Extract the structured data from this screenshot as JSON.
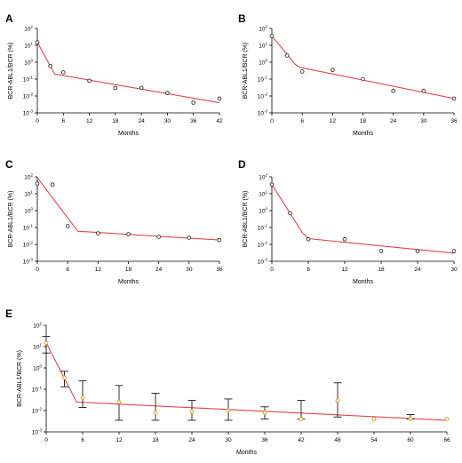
{
  "chart_data": [
    {
      "panel": "A",
      "type": "scatter",
      "ylabel": "BCR-ABL1/BCR (%)",
      "xlabel": "Months",
      "y_scale": "log10",
      "ylim": [
        0.001,
        100
      ],
      "xlim": [
        0,
        42
      ],
      "x_ticks": [
        "0",
        "6",
        "12",
        "18",
        "24",
        "30",
        "36",
        "42"
      ],
      "y_ticks": [
        {
          "b": "10",
          "e": "2"
        },
        {
          "b": "10",
          "e": "1"
        },
        {
          "b": "10",
          "e": "0"
        },
        {
          "b": "10",
          "e": "-1"
        },
        {
          "b": "10",
          "e": "-2"
        },
        {
          "b": "10",
          "e": "-3"
        }
      ],
      "points": {
        "x": [
          0,
          3,
          6,
          12,
          18,
          24,
          30,
          36,
          42
        ],
        "y": [
          15,
          0.6,
          0.25,
          0.08,
          0.03,
          0.03,
          0.015,
          0.004,
          0.007
        ]
      },
      "fit": {
        "x": [
          0,
          4,
          42
        ],
        "y": [
          15,
          0.2,
          0.004
        ]
      }
    },
    {
      "panel": "B",
      "type": "scatter",
      "ylabel": "BCR-ABL1/BCR (%)",
      "xlabel": "Months",
      "y_scale": "log10",
      "ylim": [
        0.001,
        100
      ],
      "xlim": [
        0,
        36
      ],
      "x_ticks": [
        "0",
        "6",
        "12",
        "18",
        "24",
        "30",
        "36"
      ],
      "y_ticks": [
        {
          "b": "10",
          "e": "2"
        },
        {
          "b": "10",
          "e": "1"
        },
        {
          "b": "10",
          "e": "0"
        },
        {
          "b": "10",
          "e": "-1"
        },
        {
          "b": "10",
          "e": "-2"
        },
        {
          "b": "10",
          "e": "-3"
        }
      ],
      "points": {
        "x": [
          0,
          3,
          6,
          12,
          18,
          24,
          30,
          36
        ],
        "y": [
          35,
          2.5,
          0.28,
          0.35,
          0.1,
          0.02,
          0.02,
          0.007
        ]
      },
      "fit": {
        "x": [
          0,
          3,
          4.5,
          5.5,
          36
        ],
        "y": [
          35,
          3,
          0.8,
          0.5,
          0.007
        ]
      }
    },
    {
      "panel": "C",
      "type": "scatter",
      "ylabel": "BCR-ABL1/BCR (%)",
      "xlabel": "Months",
      "y_scale": "log10",
      "ylim": [
        0.001,
        100
      ],
      "xlim": [
        0,
        36
      ],
      "x_ticks": [
        "0",
        "6",
        "12",
        "18",
        "24",
        "30",
        "36"
      ],
      "y_ticks": [
        {
          "b": "10",
          "e": "2"
        },
        {
          "b": "10",
          "e": "1"
        },
        {
          "b": "10",
          "e": "0"
        },
        {
          "b": "10",
          "e": "-1"
        },
        {
          "b": "10",
          "e": "-2"
        },
        {
          "b": "10",
          "e": "-3"
        }
      ],
      "points": {
        "x": [
          0,
          3,
          6,
          12,
          18,
          24,
          30,
          36
        ],
        "y": [
          40,
          35,
          0.12,
          0.045,
          0.04,
          0.028,
          0.025,
          0.018
        ]
      },
      "fit": {
        "x": [
          0,
          8,
          36
        ],
        "y": [
          90,
          0.06,
          0.018
        ]
      }
    },
    {
      "panel": "D",
      "type": "scatter",
      "ylabel": "BCR-ABL1/BCR (%)",
      "xlabel": "Months",
      "y_scale": "log10",
      "ylim": [
        0.001,
        100
      ],
      "xlim": [
        0,
        30
      ],
      "x_ticks": [
        "0",
        "6",
        "12",
        "18",
        "24",
        "30"
      ],
      "y_ticks": [
        {
          "b": "10",
          "e": "2"
        },
        {
          "b": "10",
          "e": "1"
        },
        {
          "b": "10",
          "e": "0"
        },
        {
          "b": "10",
          "e": "-1"
        },
        {
          "b": "10",
          "e": "-2"
        },
        {
          "b": "10",
          "e": "-3"
        }
      ],
      "points": {
        "x": [
          0,
          3,
          6,
          12,
          18,
          24,
          30
        ],
        "y": [
          35,
          0.7,
          0.02,
          0.02,
          0.004,
          0.004,
          0.004
        ]
      },
      "fit": {
        "x": [
          0,
          3,
          5,
          6,
          30
        ],
        "y": [
          35,
          0.7,
          0.05,
          0.022,
          0.003
        ]
      }
    },
    {
      "panel": "E",
      "type": "scatter",
      "ylabel": "BCR-ABL1/BCR (%)",
      "xlabel": "Months",
      "y_scale": "log10",
      "ylim": [
        0.001,
        100
      ],
      "xlim": [
        0,
        66
      ],
      "x_ticks": [
        "0",
        "6",
        "12",
        "18",
        "24",
        "30",
        "36",
        "42",
        "48",
        "54",
        "60",
        "66"
      ],
      "y_ticks": [
        {
          "b": "10",
          "e": "2"
        },
        {
          "b": "10",
          "e": "1"
        },
        {
          "b": "10",
          "e": "0"
        },
        {
          "b": "10",
          "e": "-1"
        },
        {
          "b": "10",
          "e": "-2"
        },
        {
          "b": "10",
          "e": "-3"
        }
      ],
      "points": {
        "x": [
          0,
          3,
          6,
          12,
          18,
          24,
          30,
          36,
          42,
          48,
          54,
          60,
          66
        ],
        "y": [
          15,
          0.35,
          0.04,
          0.025,
          0.008,
          0.009,
          0.01,
          0.008,
          0.004,
          0.03,
          0.004,
          0.004,
          0.004
        ]
      },
      "error_bars": {
        "x": [
          0,
          3,
          6,
          12,
          18,
          24,
          30,
          36,
          42,
          48,
          60
        ],
        "low": [
          5,
          0.13,
          0.014,
          0.0035,
          0.0035,
          0.0035,
          0.0035,
          0.004,
          0.004,
          0.005,
          0.004
        ],
        "high": [
          30,
          0.7,
          0.25,
          0.15,
          0.065,
          0.03,
          0.035,
          0.015,
          0.03,
          0.2,
          0.0065
        ]
      },
      "fit": {
        "x": [
          0,
          5,
          66
        ],
        "y": [
          15,
          0.025,
          0.0035
        ]
      }
    }
  ]
}
